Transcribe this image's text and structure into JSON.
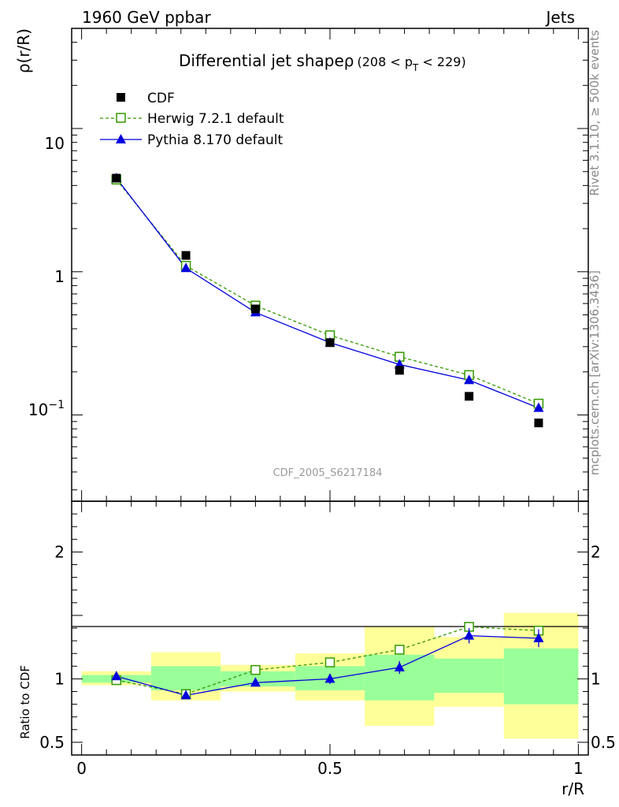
{
  "header": {
    "left": "1960 GeV ppbar",
    "right": "Jets"
  },
  "side_text": {
    "top": "Rivet 3.1.10, ≥ 500k events",
    "bottom": "mcplots.cern.ch [arXiv:1306.3436]"
  },
  "watermark": "CDF_2005_S6217184",
  "chart_data": [
    {
      "type": "scatter",
      "panel": "main",
      "title": "Differential jet shapeρ",
      "title_suffix": "(208 < p",
      "title_sub": "T",
      "title_end": " < 229)",
      "ylabel": "ρ(r/R)",
      "yscale": "log",
      "ylim": [
        0.025,
        50
      ],
      "ytick_labels": {
        "ten": "10",
        "one": "1",
        "tenth_base": "10",
        "tenth_exp": "−1"
      },
      "legend_position": "top-left",
      "x": [
        0.07,
        0.21,
        0.35,
        0.5,
        0.64,
        0.78,
        0.92
      ],
      "series": [
        {
          "name": "CDF",
          "color": "#000000",
          "marker": "square-filled",
          "values": [
            4.5,
            1.3,
            0.55,
            0.32,
            0.205,
            0.135,
            0.088
          ]
        },
        {
          "name": "Herwig 7.2.1 default",
          "color": "#339900",
          "marker": "square-open",
          "line": "dashed",
          "values": [
            4.4,
            1.1,
            0.58,
            0.36,
            0.255,
            0.19,
            0.12
          ]
        },
        {
          "name": "Pythia 8.170 default",
          "color": "#0000dd",
          "marker": "triangle",
          "line": "solid",
          "values": [
            4.5,
            1.06,
            0.52,
            0.32,
            0.225,
            0.175,
            0.112
          ]
        }
      ]
    },
    {
      "type": "line",
      "panel": "ratio",
      "ylabel": "Ratio to CDF",
      "xlabel": "r/R",
      "ylim": [
        0.4,
        2.4
      ],
      "xlim": [
        -0.02,
        1.02
      ],
      "yticks": [
        {
          "value": 0.5,
          "label": "0.5"
        },
        {
          "value": 1,
          "label": "1"
        },
        {
          "value": 2,
          "label": "2"
        }
      ],
      "xticks": [
        {
          "value": 0,
          "label": "0"
        },
        {
          "value": 0.5,
          "label": "0.5"
        },
        {
          "value": 1,
          "label": "1"
        }
      ],
      "x": [
        0.07,
        0.21,
        0.35,
        0.5,
        0.64,
        0.78,
        0.92
      ],
      "bands": [
        {
          "x0": 0.0,
          "x1": 0.14,
          "yellow": [
            0.95,
            1.06
          ],
          "green": [
            0.97,
            1.03
          ]
        },
        {
          "x0": 0.14,
          "x1": 0.28,
          "yellow": [
            0.83,
            1.21
          ],
          "green": [
            0.91,
            1.1
          ]
        },
        {
          "x0": 0.28,
          "x1": 0.43,
          "yellow": [
            0.9,
            1.11
          ],
          "green": [
            0.94,
            1.06
          ]
        },
        {
          "x0": 0.43,
          "x1": 0.57,
          "yellow": [
            0.83,
            1.2
          ],
          "green": [
            0.91,
            1.1
          ]
        },
        {
          "x0": 0.57,
          "x1": 0.71,
          "yellow": [
            0.63,
            1.41
          ],
          "green": [
            0.83,
            1.19
          ]
        },
        {
          "x0": 0.71,
          "x1": 0.85,
          "yellow": [
            0.78,
            1.33
          ],
          "green": [
            0.89,
            1.16
          ]
        },
        {
          "x0": 0.85,
          "x1": 1.0,
          "yellow": [
            0.53,
            1.52
          ],
          "green": [
            0.8,
            1.24
          ]
        }
      ],
      "series": [
        {
          "name": "Herwig 7.2.1 default",
          "color": "#339900",
          "marker": "square-open",
          "line": "dashed",
          "values": [
            0.99,
            0.88,
            1.07,
            1.13,
            1.23,
            1.41,
            1.38
          ],
          "errors": [
            0,
            0,
            0,
            0,
            0,
            0,
            0
          ]
        },
        {
          "name": "Pythia 8.170 default",
          "color": "#0000dd",
          "marker": "triangle",
          "line": "solid",
          "values": [
            1.02,
            0.87,
            0.97,
            1.0,
            1.09,
            1.34,
            1.32
          ],
          "errors": [
            0.01,
            0.01,
            0.03,
            0.04,
            0.05,
            0.06,
            0.07
          ]
        }
      ]
    }
  ]
}
